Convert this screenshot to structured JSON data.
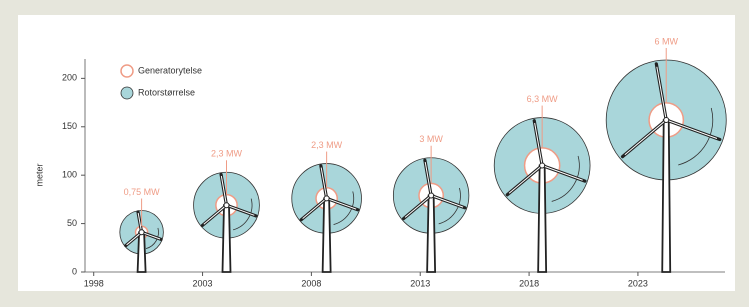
{
  "chart_data": {
    "type": "bubble",
    "ylabel": "meter",
    "x": [
      2000.2,
      2004.1,
      2008.7,
      2013.5,
      2018.6,
      2024.3
    ],
    "xlim": [
      1997.6,
      2027
    ],
    "xticks": [
      1998,
      2003,
      2008,
      2013,
      2018,
      2023
    ],
    "ylim": [
      0,
      220
    ],
    "yticks": [
      0,
      50,
      100,
      150,
      200
    ],
    "series": [
      {
        "name": "Rotorstørrelse",
        "color": "#a9d6da",
        "values": [
          41,
          69,
          76,
          79,
          110,
          157
        ],
        "sizes": [
          45,
          68,
          72,
          78,
          99,
          124
        ]
      },
      {
        "name": "Generatorytelse",
        "color": "#ef9c86",
        "values": [
          0.75,
          2.3,
          2.3,
          3,
          6.3,
          6
        ],
        "value_labels": [
          "0,75 MW",
          "2,3 MW",
          "2,3 MW",
          "3 MW",
          "6,3 MW",
          "6 MW"
        ]
      }
    ]
  }
}
